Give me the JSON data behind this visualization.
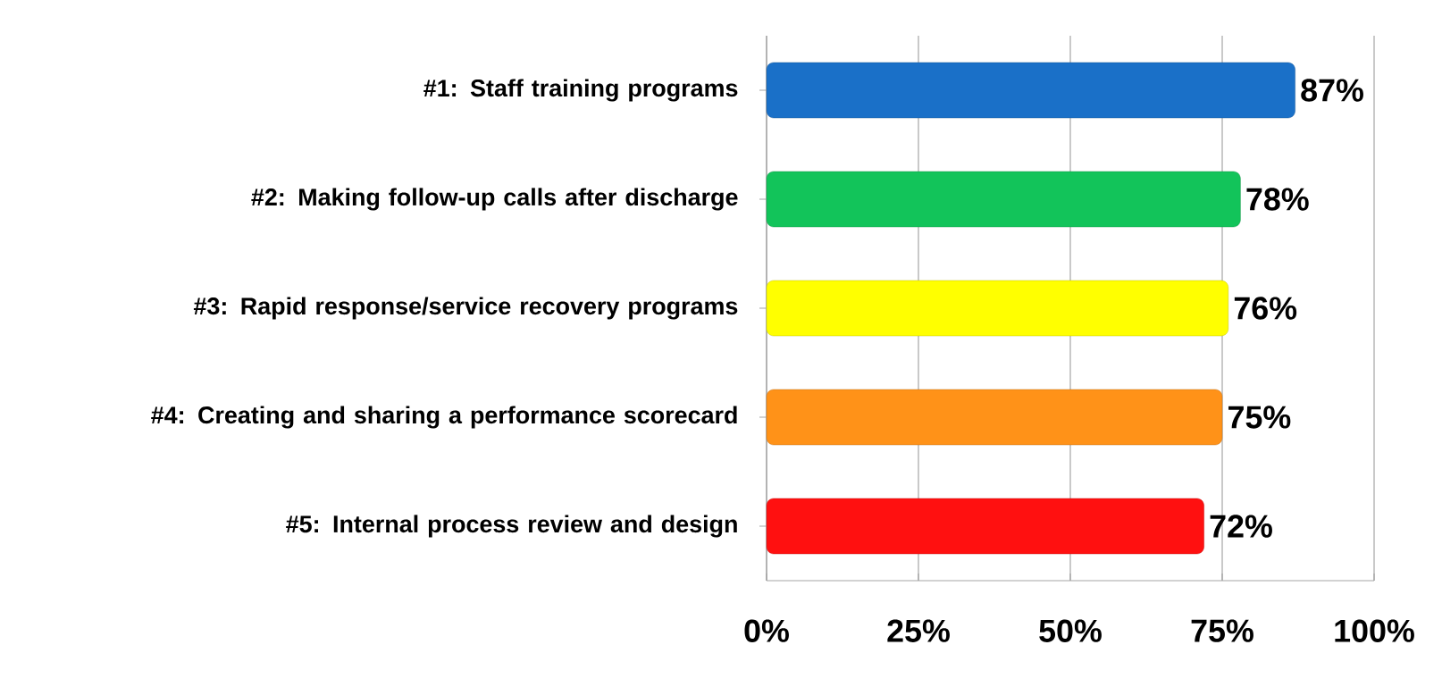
{
  "chart_data": {
    "type": "bar",
    "orientation": "horizontal",
    "categories": [
      "#1: Staff training programs",
      "#2: Making follow-up calls after discharge",
      "#3: Rapid response/service recovery programs",
      "#4: Creating and sharing a performance scorecard",
      "#5: Internal process review and design"
    ],
    "values": [
      87,
      78,
      76,
      75,
      72
    ],
    "colors": [
      "#1a70c8",
      "#12c45a",
      "#ffff00",
      "#ff9218",
      "#ff1010"
    ],
    "value_labels": [
      "87%",
      "78%",
      "76%",
      "75%",
      "72%"
    ],
    "xlim": [
      0,
      100
    ],
    "xticks": [
      {
        "value": 0,
        "label": "0%"
      },
      {
        "value": 25,
        "label": "25%"
      },
      {
        "value": 50,
        "label": "50%"
      },
      {
        "value": 75,
        "label": "75%"
      },
      {
        "value": 100,
        "label": "100%"
      }
    ],
    "grid": "x"
  }
}
